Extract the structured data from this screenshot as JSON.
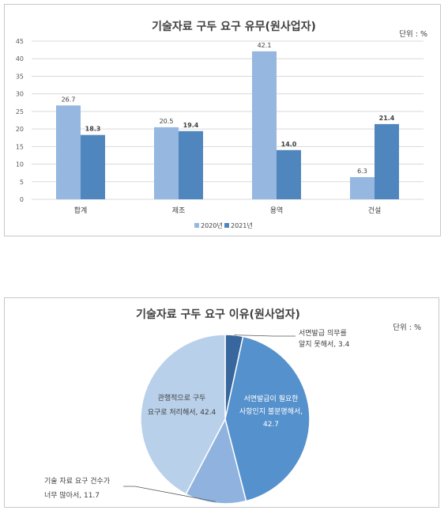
{
  "chart_data": [
    {
      "type": "bar",
      "title": "기술자료 구두 요구 유무(원사업자)",
      "unit_label": "단위 : %",
      "categories": [
        "합계",
        "제조",
        "용역",
        "건설"
      ],
      "ylim": [
        0,
        45
      ],
      "yticks": [
        0,
        5,
        10,
        15,
        20,
        25,
        30,
        35,
        40,
        45
      ],
      "grid": true,
      "legend_position": "bottom",
      "series": [
        {
          "name": "2020년",
          "color": "#95b7e0",
          "values": [
            26.7,
            20.5,
            42.1,
            6.3
          ]
        },
        {
          "name": "2021년",
          "color": "#4f86be",
          "values": [
            18.3,
            19.4,
            14.0,
            21.4
          ]
        }
      ]
    },
    {
      "type": "pie",
      "title": "기술자료 구두 요구 이유(원사업자)",
      "unit_label": "단위 : %",
      "slices": [
        {
          "label_lines": [
            "서면발급 의무를",
            "알지 못해서, 3.4"
          ],
          "value": 3.4,
          "color": "#37679c"
        },
        {
          "label_lines": [
            "서면발급이 필요한",
            "사항인지 불분명해서,",
            "42.7"
          ],
          "value": 42.7,
          "color": "#5591cc"
        },
        {
          "label_lines": [
            "기술 자료 요구 건수가",
            "너무 많아서, 11.7"
          ],
          "value": 11.7,
          "color": "#8fb3de"
        },
        {
          "label_lines": [
            "관행적으로 구두",
            "요구로 처리해서, 42.4"
          ],
          "value": 42.4,
          "color": "#b9d0ea"
        }
      ]
    }
  ]
}
